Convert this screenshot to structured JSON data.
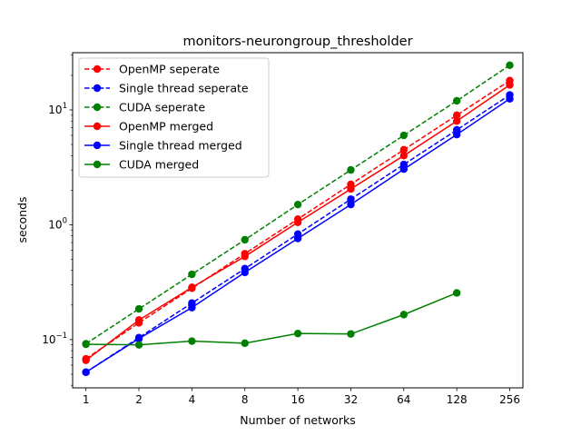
{
  "chart_data": {
    "type": "line",
    "title": "monitors-neurongroup_thresholder",
    "xlabel": "Number of networks",
    "ylabel": "seconds",
    "x_scale": "log2",
    "y_scale": "log10",
    "xlim": [
      0.84,
      304
    ],
    "ylim": [
      0.038,
      31.5
    ],
    "x_ticks": [
      1,
      2,
      4,
      8,
      16,
      32,
      64,
      128,
      256
    ],
    "x_tick_labels": [
      "1",
      "2",
      "4",
      "8",
      "16",
      "32",
      "64",
      "128",
      "256"
    ],
    "y_ticks": [
      0.1,
      1,
      10
    ],
    "y_tick_labels": [
      {
        "base": "10",
        "exp": "−1"
      },
      {
        "base": "10",
        "exp": "0"
      },
      {
        "base": "10",
        "exp": "1"
      }
    ],
    "grid": false,
    "legend_position": "top-left",
    "series": [
      {
        "name": "OpenMP seperate",
        "color": "#ff0000",
        "linestyle": "dashed",
        "marker": "circle",
        "x": [
          1,
          2,
          4,
          8,
          16,
          32,
          64,
          128,
          256
        ],
        "y": [
          0.068,
          0.14,
          0.28,
          0.56,
          1.12,
          2.25,
          4.5,
          9.0,
          18.0
        ]
      },
      {
        "name": "Single thread seperate",
        "color": "#0000ff",
        "linestyle": "dashed",
        "marker": "circle",
        "x": [
          1,
          2,
          4,
          8,
          16,
          32,
          64,
          128,
          256
        ],
        "y": [
          0.052,
          0.104,
          0.208,
          0.415,
          0.83,
          1.67,
          3.35,
          6.7,
          13.5
        ]
      },
      {
        "name": "CUDA seperate",
        "color": "#008000",
        "linestyle": "dashed",
        "marker": "circle",
        "x": [
          1,
          2,
          4,
          8,
          16,
          32,
          64,
          128,
          256
        ],
        "y": [
          0.092,
          0.185,
          0.37,
          0.74,
          1.5,
          3.0,
          6.0,
          12.0,
          24.5
        ]
      },
      {
        "name": "OpenMP merged",
        "color": "#ff0000",
        "linestyle": "solid",
        "marker": "circle",
        "x": [
          1,
          2,
          4,
          8,
          16,
          32,
          64,
          128,
          256
        ],
        "y": [
          0.066,
          0.148,
          0.285,
          0.53,
          1.05,
          2.05,
          4.0,
          8.0,
          16.5
        ]
      },
      {
        "name": "Single thread merged",
        "color": "#0000ff",
        "linestyle": "solid",
        "marker": "circle",
        "x": [
          1,
          2,
          4,
          8,
          16,
          32,
          64,
          128,
          256
        ],
        "y": [
          0.052,
          0.102,
          0.19,
          0.385,
          0.76,
          1.5,
          3.05,
          6.1,
          12.5
        ]
      },
      {
        "name": "CUDA merged",
        "color": "#008000",
        "linestyle": "solid",
        "marker": "circle",
        "x": [
          1,
          2,
          4,
          8,
          16,
          32,
          64,
          128
        ],
        "y": [
          0.091,
          0.09,
          0.097,
          0.093,
          0.113,
          0.112,
          0.165,
          0.255
        ]
      }
    ]
  }
}
